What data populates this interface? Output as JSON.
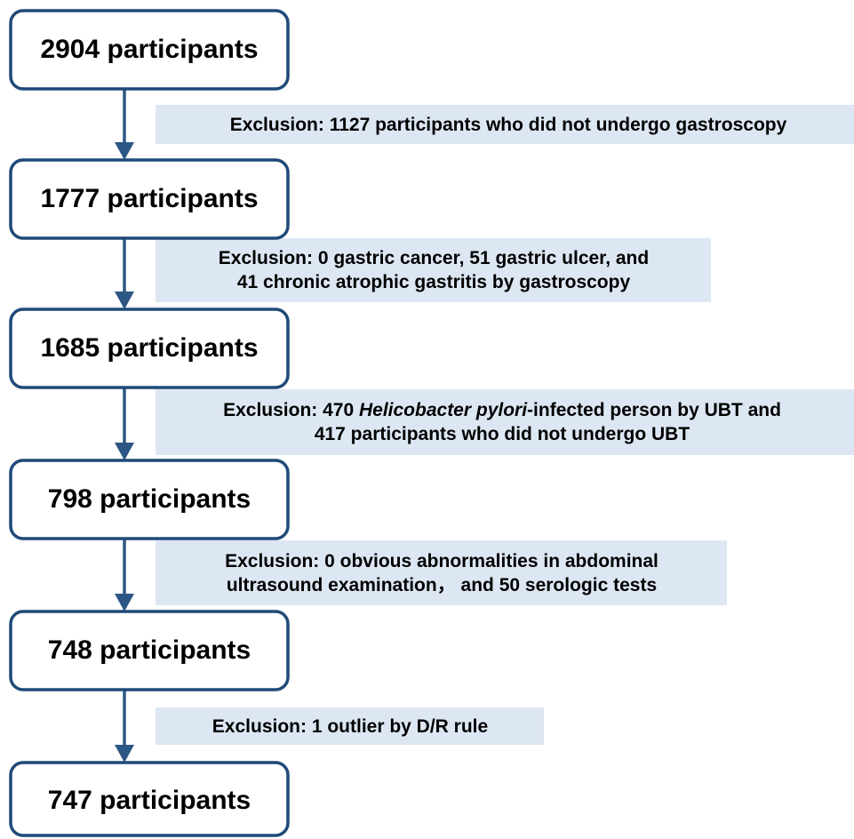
{
  "nodes": [
    {
      "label": "2904 participants"
    },
    {
      "label": "1777 participants"
    },
    {
      "label": "1685 participants"
    },
    {
      "label": "798 participants"
    },
    {
      "label": "748 participants"
    },
    {
      "label": "747 participants"
    }
  ],
  "exclusions": [
    {
      "lines": [
        [
          "Exclusion: 1127 participants who did not undergo gastroscopy"
        ]
      ]
    },
    {
      "lines": [
        [
          "Exclusion: 0 gastric cancer, 51 gastric ulcer, and"
        ],
        [
          "41 chronic atrophic gastritis by gastroscopy"
        ]
      ]
    },
    {
      "lines": [
        [
          "Exclusion: 470 ",
          "Helicobacter pylori",
          "-infected person by UBT and"
        ],
        [
          "417 participants who did not undergo UBT"
        ]
      ]
    },
    {
      "lines": [
        [
          "Exclusion: 0 obvious abnormalities in abdominal"
        ],
        [
          "ultrasound examination， and 50 serologic tests"
        ]
      ]
    },
    {
      "lines": [
        [
          "Exclusion: 1 outlier by D/R rule"
        ]
      ]
    }
  ]
}
